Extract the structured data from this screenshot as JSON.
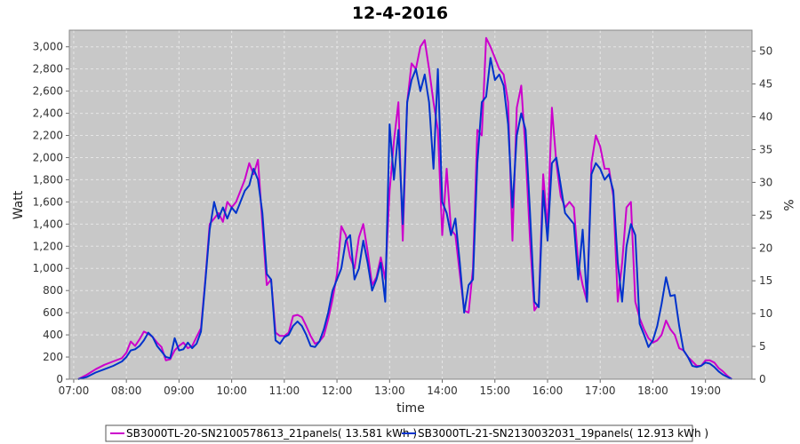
{
  "chart_data": {
    "type": "line",
    "title": "12-4-2016",
    "xlabel": "time",
    "ylabel": "Watt",
    "y2label": "%",
    "xlim": [
      "06:55",
      "19:53"
    ],
    "ylim": [
      0,
      3150
    ],
    "y2lim": [
      0,
      53.2
    ],
    "x_ticks": [
      "07:00",
      "08:00",
      "09:00",
      "10:00",
      "11:00",
      "12:00",
      "13:00",
      "14:00",
      "15:00",
      "16:00",
      "17:00",
      "18:00",
      "19:00"
    ],
    "y_ticks": [
      "0",
      "200",
      "400",
      "600",
      "800",
      "1,000",
      "1,200",
      "1,400",
      "1,600",
      "1,800",
      "2,000",
      "2,200",
      "2,400",
      "2,600",
      "2,800",
      "3,000"
    ],
    "y2_ticks": [
      "0",
      "5",
      "10",
      "15",
      "20",
      "25",
      "30",
      "35",
      "40",
      "45",
      "50"
    ],
    "grid": true,
    "legend_position": "bottom",
    "colors": {
      "plot_bg": "#c8c8c8",
      "grid": "#e6e6e6"
    },
    "series": [
      {
        "name": "SB3000TL-20-SN2100578613_21panels( 13.581 kWh )",
        "color": "#cc00cc",
        "points": [
          [
            "07:05",
            0
          ],
          [
            "07:15",
            40
          ],
          [
            "07:25",
            90
          ],
          [
            "07:35",
            130
          ],
          [
            "07:45",
            160
          ],
          [
            "07:55",
            190
          ],
          [
            "08:00",
            240
          ],
          [
            "08:05",
            340
          ],
          [
            "08:10",
            300
          ],
          [
            "08:15",
            360
          ],
          [
            "08:20",
            430
          ],
          [
            "08:25",
            410
          ],
          [
            "08:30",
            380
          ],
          [
            "08:35",
            330
          ],
          [
            "08:40",
            290
          ],
          [
            "08:45",
            170
          ],
          [
            "08:50",
            180
          ],
          [
            "08:55",
            260
          ],
          [
            "09:00",
            300
          ],
          [
            "09:05",
            330
          ],
          [
            "09:10",
            280
          ],
          [
            "09:15",
            300
          ],
          [
            "09:20",
            380
          ],
          [
            "09:25",
            460
          ],
          [
            "09:30",
            900
          ],
          [
            "09:35",
            1400
          ],
          [
            "09:40",
            1450
          ],
          [
            "09:45",
            1500
          ],
          [
            "09:50",
            1420
          ],
          [
            "09:55",
            1600
          ],
          [
            "10:00",
            1550
          ],
          [
            "10:05",
            1600
          ],
          [
            "10:10",
            1700
          ],
          [
            "10:15",
            1800
          ],
          [
            "10:20",
            1950
          ],
          [
            "10:25",
            1850
          ],
          [
            "10:30",
            1980
          ],
          [
            "10:35",
            1400
          ],
          [
            "10:40",
            850
          ],
          [
            "10:45",
            900
          ],
          [
            "10:50",
            420
          ],
          [
            "10:55",
            390
          ],
          [
            "11:00",
            390
          ],
          [
            "11:05",
            420
          ],
          [
            "11:10",
            570
          ],
          [
            "11:15",
            580
          ],
          [
            "11:20",
            560
          ],
          [
            "11:25",
            480
          ],
          [
            "11:30",
            390
          ],
          [
            "11:35",
            320
          ],
          [
            "11:40",
            340
          ],
          [
            "11:45",
            390
          ],
          [
            "11:50",
            540
          ],
          [
            "11:55",
            720
          ],
          [
            "12:00",
            950
          ],
          [
            "12:05",
            1380
          ],
          [
            "12:10",
            1300
          ],
          [
            "12:15",
            1100
          ],
          [
            "12:20",
            1000
          ],
          [
            "12:25",
            1280
          ],
          [
            "12:30",
            1400
          ],
          [
            "12:35",
            1150
          ],
          [
            "12:40",
            850
          ],
          [
            "12:45",
            920
          ],
          [
            "12:50",
            1100
          ],
          [
            "12:55",
            900
          ],
          [
            "13:00",
            1700
          ],
          [
            "13:05",
            2150
          ],
          [
            "13:10",
            2500
          ],
          [
            "13:15",
            1250
          ],
          [
            "13:20",
            2500
          ],
          [
            "13:25",
            2850
          ],
          [
            "13:30",
            2800
          ],
          [
            "13:35",
            3000
          ],
          [
            "13:40",
            3060
          ],
          [
            "13:45",
            2800
          ],
          [
            "13:50",
            2500
          ],
          [
            "13:55",
            2250
          ],
          [
            "14:00",
            1300
          ],
          [
            "14:05",
            1900
          ],
          [
            "14:10",
            1350
          ],
          [
            "14:15",
            1300
          ],
          [
            "14:20",
            950
          ],
          [
            "14:25",
            620
          ],
          [
            "14:30",
            600
          ],
          [
            "14:35",
            1000
          ],
          [
            "14:40",
            2250
          ],
          [
            "14:45",
            2200
          ],
          [
            "14:50",
            3080
          ],
          [
            "14:55",
            3000
          ],
          [
            "15:00",
            2900
          ],
          [
            "15:05",
            2800
          ],
          [
            "15:10",
            2750
          ],
          [
            "15:15",
            2500
          ],
          [
            "15:20",
            1250
          ],
          [
            "15:25",
            2450
          ],
          [
            "15:30",
            2650
          ],
          [
            "15:35",
            2050
          ],
          [
            "15:40",
            1250
          ],
          [
            "15:45",
            620
          ],
          [
            "15:50",
            680
          ],
          [
            "15:55",
            1850
          ],
          [
            "16:00",
            1350
          ],
          [
            "16:05",
            2450
          ],
          [
            "16:10",
            1950
          ],
          [
            "16:15",
            1650
          ],
          [
            "16:20",
            1550
          ],
          [
            "16:25",
            1600
          ],
          [
            "16:30",
            1550
          ],
          [
            "16:35",
            1050
          ],
          [
            "16:40",
            850
          ],
          [
            "16:45",
            700
          ],
          [
            "16:50",
            1950
          ],
          [
            "16:55",
            2200
          ],
          [
            "17:00",
            2100
          ],
          [
            "17:05",
            1900
          ],
          [
            "17:10",
            1900
          ],
          [
            "17:15",
            1650
          ],
          [
            "17:20",
            700
          ],
          [
            "17:25",
            1050
          ],
          [
            "17:30",
            1550
          ],
          [
            "17:35",
            1600
          ],
          [
            "17:40",
            700
          ],
          [
            "17:45",
            550
          ],
          [
            "17:50",
            450
          ],
          [
            "17:55",
            370
          ],
          [
            "18:00",
            330
          ],
          [
            "18:05",
            350
          ],
          [
            "18:10",
            400
          ],
          [
            "18:15",
            530
          ],
          [
            "18:20",
            450
          ],
          [
            "18:25",
            400
          ],
          [
            "18:30",
            280
          ],
          [
            "18:35",
            260
          ],
          [
            "18:40",
            200
          ],
          [
            "18:45",
            160
          ],
          [
            "18:50",
            120
          ],
          [
            "18:55",
            120
          ],
          [
            "19:00",
            170
          ],
          [
            "19:05",
            170
          ],
          [
            "19:10",
            150
          ],
          [
            "19:15",
            100
          ],
          [
            "19:20",
            70
          ],
          [
            "19:25",
            30
          ],
          [
            "19:30",
            0
          ]
        ]
      },
      {
        "name": "SB3000TL-21-SN2130032031_19panels( 12.913 kWh )",
        "color": "#0033cc",
        "points": [
          [
            "07:05",
            0
          ],
          [
            "07:15",
            20
          ],
          [
            "07:25",
            60
          ],
          [
            "07:35",
            90
          ],
          [
            "07:45",
            120
          ],
          [
            "07:55",
            160
          ],
          [
            "08:00",
            200
          ],
          [
            "08:05",
            260
          ],
          [
            "08:10",
            270
          ],
          [
            "08:15",
            300
          ],
          [
            "08:20",
            350
          ],
          [
            "08:25",
            420
          ],
          [
            "08:30",
            380
          ],
          [
            "08:35",
            300
          ],
          [
            "08:40",
            250
          ],
          [
            "08:45",
            200
          ],
          [
            "08:50",
            190
          ],
          [
            "08:55",
            370
          ],
          [
            "09:00",
            260
          ],
          [
            "09:05",
            270
          ],
          [
            "09:10",
            330
          ],
          [
            "09:15",
            280
          ],
          [
            "09:20",
            320
          ],
          [
            "09:25",
            430
          ],
          [
            "09:30",
            880
          ],
          [
            "09:35",
            1350
          ],
          [
            "09:40",
            1600
          ],
          [
            "09:45",
            1450
          ],
          [
            "09:50",
            1550
          ],
          [
            "09:55",
            1450
          ],
          [
            "10:00",
            1550
          ],
          [
            "10:05",
            1500
          ],
          [
            "10:10",
            1600
          ],
          [
            "10:15",
            1700
          ],
          [
            "10:20",
            1750
          ],
          [
            "10:25",
            1900
          ],
          [
            "10:30",
            1800
          ],
          [
            "10:35",
            1500
          ],
          [
            "10:40",
            950
          ],
          [
            "10:45",
            900
          ],
          [
            "10:50",
            350
          ],
          [
            "10:55",
            320
          ],
          [
            "11:00",
            380
          ],
          [
            "11:05",
            400
          ],
          [
            "11:10",
            480
          ],
          [
            "11:15",
            520
          ],
          [
            "11:20",
            480
          ],
          [
            "11:25",
            400
          ],
          [
            "11:30",
            300
          ],
          [
            "11:35",
            290
          ],
          [
            "11:40",
            340
          ],
          [
            "11:45",
            450
          ],
          [
            "11:50",
            600
          ],
          [
            "11:55",
            800
          ],
          [
            "12:00",
            900
          ],
          [
            "12:05",
            1000
          ],
          [
            "12:10",
            1250
          ],
          [
            "12:15",
            1300
          ],
          [
            "12:20",
            900
          ],
          [
            "12:25",
            1000
          ],
          [
            "12:30",
            1250
          ],
          [
            "12:35",
            1050
          ],
          [
            "12:40",
            800
          ],
          [
            "12:45",
            900
          ],
          [
            "12:50",
            1050
          ],
          [
            "12:55",
            700
          ],
          [
            "13:00",
            2300
          ],
          [
            "13:05",
            1800
          ],
          [
            "13:10",
            2250
          ],
          [
            "13:15",
            1400
          ],
          [
            "13:20",
            2500
          ],
          [
            "13:25",
            2700
          ],
          [
            "13:30",
            2800
          ],
          [
            "13:35",
            2600
          ],
          [
            "13:40",
            2750
          ],
          [
            "13:45",
            2500
          ],
          [
            "13:50",
            1900
          ],
          [
            "13:55",
            2800
          ],
          [
            "14:00",
            1600
          ],
          [
            "14:05",
            1500
          ],
          [
            "14:10",
            1300
          ],
          [
            "14:15",
            1450
          ],
          [
            "14:20",
            1050
          ],
          [
            "14:25",
            600
          ],
          [
            "14:30",
            850
          ],
          [
            "14:35",
            900
          ],
          [
            "14:40",
            1950
          ],
          [
            "14:45",
            2500
          ],
          [
            "14:50",
            2550
          ],
          [
            "14:55",
            2900
          ],
          [
            "15:00",
            2700
          ],
          [
            "15:05",
            2750
          ],
          [
            "15:10",
            2650
          ],
          [
            "15:15",
            2300
          ],
          [
            "15:20",
            1550
          ],
          [
            "15:25",
            2200
          ],
          [
            "15:30",
            2400
          ],
          [
            "15:35",
            2250
          ],
          [
            "15:40",
            1500
          ],
          [
            "15:45",
            700
          ],
          [
            "15:50",
            650
          ],
          [
            "15:55",
            1700
          ],
          [
            "16:00",
            1250
          ],
          [
            "16:05",
            1950
          ],
          [
            "16:10",
            2000
          ],
          [
            "16:15",
            1750
          ],
          [
            "16:20",
            1500
          ],
          [
            "16:25",
            1450
          ],
          [
            "16:30",
            1400
          ],
          [
            "16:35",
            900
          ],
          [
            "16:40",
            1350
          ],
          [
            "16:45",
            700
          ],
          [
            "16:50",
            1850
          ],
          [
            "16:55",
            1950
          ],
          [
            "17:00",
            1900
          ],
          [
            "17:05",
            1800
          ],
          [
            "17:10",
            1850
          ],
          [
            "17:15",
            1700
          ],
          [
            "17:20",
            1050
          ],
          [
            "17:25",
            700
          ],
          [
            "17:30",
            1200
          ],
          [
            "17:35",
            1400
          ],
          [
            "17:40",
            1300
          ],
          [
            "17:45",
            500
          ],
          [
            "17:50",
            400
          ],
          [
            "17:55",
            290
          ],
          [
            "18:00",
            350
          ],
          [
            "18:05",
            480
          ],
          [
            "18:10",
            680
          ],
          [
            "18:15",
            920
          ],
          [
            "18:20",
            750
          ],
          [
            "18:25",
            760
          ],
          [
            "18:30",
            480
          ],
          [
            "18:35",
            260
          ],
          [
            "18:40",
            200
          ],
          [
            "18:45",
            120
          ],
          [
            "18:50",
            110
          ],
          [
            "18:55",
            120
          ],
          [
            "19:00",
            150
          ],
          [
            "19:05",
            140
          ],
          [
            "19:10",
            110
          ],
          [
            "19:15",
            70
          ],
          [
            "19:20",
            40
          ],
          [
            "19:25",
            20
          ],
          [
            "19:30",
            0
          ]
        ]
      }
    ]
  }
}
